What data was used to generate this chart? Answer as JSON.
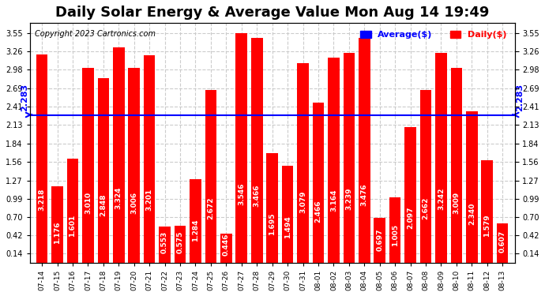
{
  "title": "Daily Solar Energy & Average Value Mon Aug 14 19:49",
  "copyright": "Copyright 2023 Cartronics.com",
  "categories": [
    "07-14",
    "07-15",
    "07-16",
    "07-17",
    "07-18",
    "07-19",
    "07-20",
    "07-21",
    "07-22",
    "07-23",
    "07-24",
    "07-25",
    "07-26",
    "07-27",
    "07-28",
    "07-29",
    "07-30",
    "07-31",
    "08-01",
    "08-02",
    "08-03",
    "08-04",
    "08-05",
    "08-06",
    "08-07",
    "08-08",
    "08-09",
    "08-10",
    "08-11",
    "08-12",
    "08-13"
  ],
  "values": [
    3.218,
    1.176,
    1.601,
    3.01,
    2.848,
    3.324,
    3.006,
    3.201,
    0.553,
    0.575,
    1.284,
    2.672,
    0.446,
    3.546,
    3.466,
    1.695,
    1.494,
    3.079,
    2.466,
    3.164,
    3.239,
    3.476,
    0.697,
    1.005,
    2.097,
    2.662,
    3.242,
    3.009,
    2.34,
    1.579,
    0.607
  ],
  "average": 2.283,
  "bar_color": "#ff0000",
  "average_line_color": "#0000ff",
  "background_color": "#ffffff",
  "plot_bg_color": "#ffffff",
  "grid_color": "#cccccc",
  "yticks": [
    0.14,
    0.42,
    0.7,
    0.99,
    1.27,
    1.56,
    1.84,
    2.13,
    2.41,
    2.69,
    2.98,
    3.26,
    3.55
  ],
  "title_fontsize": 13,
  "bar_text_color": "#ffffff",
  "bar_text_fontsize": 6.5,
  "avg_label_color": "#0000ff",
  "avg_label_fontsize": 8,
  "legend_avg_color": "#0000ff",
  "legend_daily_color": "#ff0000"
}
